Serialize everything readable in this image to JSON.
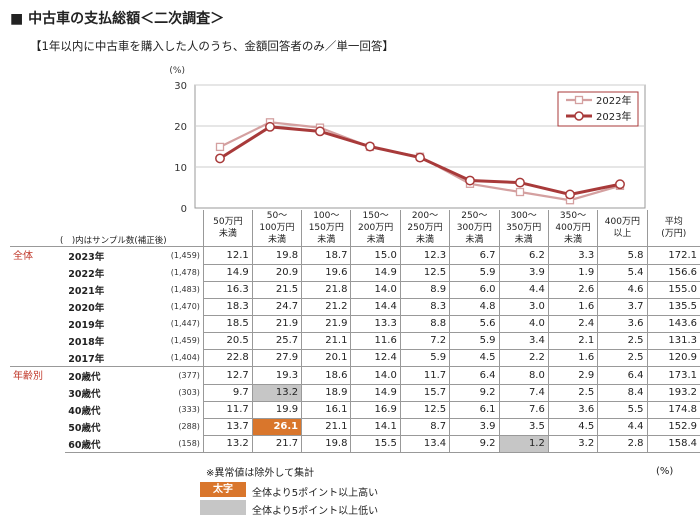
{
  "title": "■ 中古車の支払総額＜二次調査＞",
  "subtitle": "【1年以内に中古車を購入した人のうち、金額回答者のみ／単一回答】",
  "chart_data": {
    "type": "line",
    "ylabel": "(%)",
    "ylim": [
      0,
      30
    ],
    "yticks": [
      "0",
      "10",
      "20",
      "30"
    ],
    "categories": [
      "50万円未満",
      "50～100万円未満",
      "100～150万円未満",
      "150～200万円未満",
      "200～250万円未満",
      "250～300万円未満",
      "300～350万円未満",
      "350～400万円未満",
      "400万円以上"
    ],
    "series": [
      {
        "name": "2022年",
        "color": "#d4a0a0",
        "values": [
          14.9,
          20.9,
          19.6,
          14.9,
          12.5,
          5.9,
          3.9,
          1.9,
          5.4
        ]
      },
      {
        "name": "2023年",
        "color": "#a83a3a",
        "values": [
          12.1,
          19.8,
          18.7,
          15.0,
          12.3,
          6.7,
          6.2,
          3.3,
          5.8
        ]
      }
    ],
    "legend": "top-right"
  },
  "table": {
    "sample_caption": "(　)内はサンプル数(補正後)",
    "headers": [
      [
        "50万円",
        "未満"
      ],
      [
        "50～",
        "100万円",
        "未満"
      ],
      [
        "100～",
        "150万円",
        "未満"
      ],
      [
        "150～",
        "200万円",
        "未満"
      ],
      [
        "200～",
        "250万円",
        "未満"
      ],
      [
        "250～",
        "300万円",
        "未満"
      ],
      [
        "300～",
        "350万円",
        "未満"
      ],
      [
        "350～",
        "400万円",
        "未満"
      ],
      [
        "400万円",
        "以上"
      ],
      [
        "平均",
        "(万円)"
      ]
    ],
    "groups": [
      {
        "label": "全体",
        "rows": [
          {
            "label": "2023年",
            "n": "(1,459)",
            "values": [
              "12.1",
              "19.8",
              "18.7",
              "15.0",
              "12.3",
              "6.7",
              "6.2",
              "3.3",
              "5.8"
            ],
            "avg": "172.1"
          },
          {
            "label": "2022年",
            "n": "(1,478)",
            "values": [
              "14.9",
              "20.9",
              "19.6",
              "14.9",
              "12.5",
              "5.9",
              "3.9",
              "1.9",
              "5.4"
            ],
            "avg": "156.6"
          },
          {
            "label": "2021年",
            "n": "(1,483)",
            "values": [
              "16.3",
              "21.5",
              "21.8",
              "14.0",
              "8.9",
              "6.0",
              "4.4",
              "2.6",
              "4.6"
            ],
            "avg": "155.0"
          },
          {
            "label": "2020年",
            "n": "(1,470)",
            "values": [
              "18.3",
              "24.7",
              "21.2",
              "14.4",
              "8.3",
              "4.8",
              "3.0",
              "1.6",
              "3.7"
            ],
            "avg": "135.5"
          },
          {
            "label": "2019年",
            "n": "(1,447)",
            "values": [
              "18.5",
              "21.9",
              "21.9",
              "13.3",
              "8.8",
              "5.6",
              "4.0",
              "2.4",
              "3.6"
            ],
            "avg": "143.6"
          },
          {
            "label": "2018年",
            "n": "(1,459)",
            "values": [
              "20.5",
              "25.7",
              "21.1",
              "11.6",
              "7.2",
              "5.9",
              "3.4",
              "2.1",
              "2.5"
            ],
            "avg": "131.3"
          },
          {
            "label": "2017年",
            "n": "(1,404)",
            "values": [
              "22.8",
              "27.9",
              "20.1",
              "12.4",
              "5.9",
              "4.5",
              "2.2",
              "1.6",
              "2.5"
            ],
            "avg": "120.9"
          }
        ]
      },
      {
        "label": "年齢別",
        "rows": [
          {
            "label": "20歳代",
            "n": "(377)",
            "values": [
              "12.7",
              "19.3",
              "18.6",
              "14.0",
              "11.7",
              "6.4",
              "8.0",
              "2.9",
              "6.4"
            ],
            "avg": "173.1"
          },
          {
            "label": "30歳代",
            "n": "(303)",
            "values": [
              "9.7",
              "13.2",
              "18.9",
              "14.9",
              "15.7",
              "9.2",
              "7.4",
              "2.5",
              "8.4"
            ],
            "avg": "193.2",
            "low": [
              1
            ]
          },
          {
            "label": "40歳代",
            "n": "(333)",
            "values": [
              "11.7",
              "19.9",
              "16.1",
              "16.9",
              "12.5",
              "6.1",
              "7.6",
              "3.6",
              "5.5"
            ],
            "avg": "174.8"
          },
          {
            "label": "50歳代",
            "n": "(288)",
            "values": [
              "13.7",
              "26.1",
              "21.1",
              "14.1",
              "8.7",
              "3.9",
              "3.5",
              "4.5",
              "4.4"
            ],
            "avg": "152.9",
            "high": [
              1
            ]
          },
          {
            "label": "60歳代",
            "n": "(158)",
            "values": [
              "13.2",
              "21.7",
              "19.8",
              "15.5",
              "13.4",
              "9.2",
              "1.2",
              "3.2",
              "2.8"
            ],
            "avg": "158.4",
            "low": [
              6
            ]
          }
        ]
      }
    ],
    "unit": "(%)"
  },
  "notes": {
    "outlier": "※異常値は除外して集計",
    "high_swatch": "太字",
    "high_text": "全体より5ポイント以上高い",
    "low_text": "全体より5ポイント以上低い"
  },
  "colors": {
    "high": "#d9762c",
    "low": "#c6c6c6",
    "s2022": "#d4a0a0",
    "s2023": "#a83a3a"
  }
}
